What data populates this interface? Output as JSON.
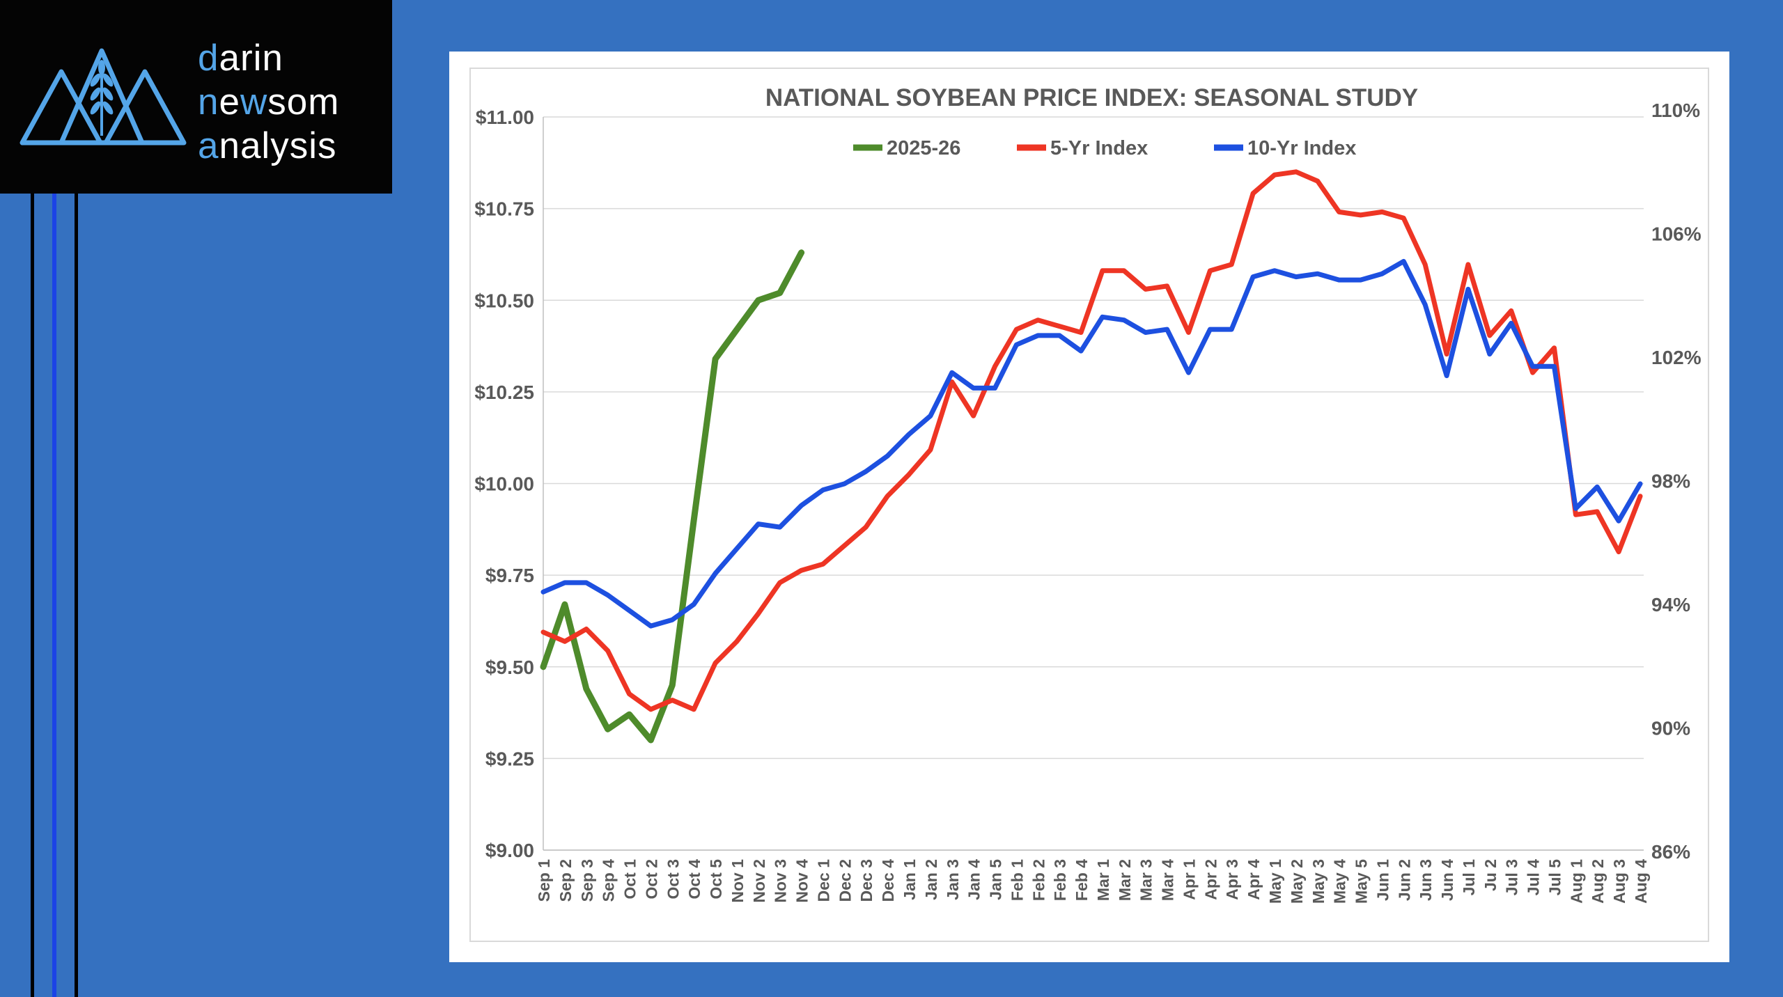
{
  "logo": {
    "icon": "mountain-wheat-logo",
    "accent_color": "#54a5e8",
    "lines": [
      [
        {
          "t": "d",
          "blue": true
        },
        {
          "t": "arin",
          "blue": false
        }
      ],
      [
        {
          "t": "n",
          "blue": true
        },
        {
          "t": "e",
          "blue": false
        },
        {
          "t": "w",
          "blue": true
        },
        {
          "t": "som",
          "blue": false
        }
      ],
      [
        {
          "t": "a",
          "blue": true
        },
        {
          "t": "nalysis",
          "blue": false
        }
      ]
    ]
  },
  "chart_data": {
    "type": "line",
    "title": "NATIONAL SOYBEAN PRICE INDEX: SEASONAL STUDY",
    "grid": "horizontal",
    "legend_position": "top-center",
    "categories": [
      "Sep 1",
      "Sep 2",
      "Sep 3",
      "Sep 4",
      "Oct 1",
      "Oct 2",
      "Oct 3",
      "Oct 4",
      "Oct 5",
      "Nov 1",
      "Nov 2",
      "Nov 3",
      "Nov 4",
      "Dec 1",
      "Dec 2",
      "Dec 3",
      "Dec 4",
      "Jan 1",
      "Jan 2",
      "Jan 3",
      "Jan 4",
      "Jan 5",
      "Feb 1",
      "Feb 2",
      "Feb 3",
      "Feb 4",
      "Mar 1",
      "Mar 2",
      "Mar 3",
      "Mar 4",
      "Apr 1",
      "Apr 2",
      "Apr 3",
      "Apr 4",
      "May 1",
      "May 2",
      "May 3",
      "May 4",
      "May 5",
      "Jun 1",
      "Jun 2",
      "Jun 3",
      "Jun 4",
      "Jul 1",
      "Ju 2",
      "Jul 3",
      "Jul 4",
      "Jul 5",
      "Aug 1",
      "Aug 2",
      "Aug 3",
      "Aug 4"
    ],
    "left_axis": {
      "title": "price",
      "min": 9.0,
      "max": 11.0,
      "step": 0.25,
      "ticks": [
        "$11.00",
        "$10.75",
        "$10.50",
        "$10.25",
        "$10.00",
        "$9.75",
        "$9.50",
        "$9.25",
        "$9.00"
      ]
    },
    "right_axis": {
      "title": "percent of average",
      "min": 86,
      "max": 110,
      "step": 4,
      "ticks": [
        "110%",
        "106%",
        "102%",
        "98%",
        "94%",
        "90%",
        "86%"
      ]
    },
    "series": [
      {
        "name": "2025-26",
        "axis": "left",
        "color": "#4e8b2b",
        "stroke_width": 9,
        "values": [
          9.5,
          9.67,
          9.44,
          9.33,
          9.37,
          9.3,
          9.45,
          9.9,
          10.34,
          10.42,
          10.5,
          10.52,
          10.63,
          null,
          null,
          null,
          null,
          null,
          null,
          null,
          null,
          null,
          null,
          null,
          null,
          null,
          null,
          null,
          null,
          null,
          null,
          null,
          null,
          null,
          null,
          null,
          null,
          null,
          null,
          null,
          null,
          null,
          null,
          null,
          null,
          null,
          null,
          null,
          null,
          null,
          null,
          null
        ]
      },
      {
        "name": "5-Yr Index",
        "axis": "right",
        "color": "#ee3524",
        "stroke_width": 7,
        "values": [
          93.1,
          92.8,
          93.2,
          92.5,
          91.1,
          90.6,
          90.9,
          90.6,
          92.1,
          92.8,
          93.7,
          94.7,
          95.1,
          95.3,
          95.9,
          96.5,
          97.5,
          98.2,
          99.0,
          101.2,
          100.1,
          101.7,
          102.9,
          103.2,
          103.0,
          102.8,
          104.8,
          104.8,
          104.2,
          104.3,
          102.8,
          104.8,
          105.0,
          107.3,
          107.9,
          108.0,
          107.7,
          106.7,
          106.6,
          106.7,
          106.5,
          105.0,
          102.1,
          105.0,
          102.7,
          103.5,
          101.5,
          102.3,
          96.9,
          97.0,
          95.7,
          97.5
        ]
      },
      {
        "name": "10-Yr Index",
        "axis": "right",
        "color": "#1d50e0",
        "stroke_width": 7,
        "values": [
          94.4,
          94.7,
          94.7,
          94.3,
          93.8,
          93.3,
          93.5,
          94.0,
          95.0,
          95.8,
          96.6,
          96.5,
          97.2,
          97.7,
          97.9,
          98.3,
          98.8,
          99.5,
          100.1,
          101.5,
          101.0,
          101.0,
          102.4,
          102.7,
          102.7,
          102.2,
          103.3,
          103.2,
          102.8,
          102.9,
          101.5,
          102.9,
          102.9,
          104.6,
          104.8,
          104.6,
          104.7,
          104.5,
          104.5,
          104.7,
          105.1,
          103.7,
          101.4,
          104.2,
          102.1,
          103.1,
          101.7,
          101.7,
          97.1,
          97.8,
          96.7,
          97.9
        ]
      }
    ],
    "colors": {
      "background": "#3571c0",
      "panel": "#ffffff",
      "gridline": "#d9d9d9",
      "axis_line": "#bfbfbf",
      "text": "#595959",
      "logo_bg": "#040404",
      "logo_accent": "#54a5e8",
      "side_line_blue": "#1b43e6"
    }
  }
}
